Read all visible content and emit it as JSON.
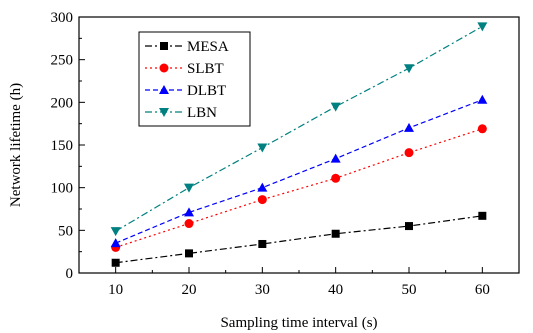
{
  "chart_data": {
    "type": "line",
    "title": "",
    "xlabel": "Sampling time interval (s)",
    "ylabel": "Network lifetime (h)",
    "x": [
      10,
      20,
      30,
      40,
      50,
      60
    ],
    "xlim": [
      5,
      65
    ],
    "ylim": [
      0,
      300
    ],
    "xticks": [
      "10",
      "20",
      "30",
      "40",
      "50",
      "60"
    ],
    "yticks": [
      "0",
      "50",
      "100",
      "150",
      "200",
      "250",
      "300"
    ],
    "grid": false,
    "legend_position": "top-left",
    "series": [
      {
        "name": "MESA",
        "values": [
          12,
          23,
          34,
          46,
          55,
          67
        ],
        "color": "#000000",
        "marker": "square",
        "dash": "dash-dot"
      },
      {
        "name": "SLBT",
        "values": [
          30,
          58,
          86,
          111,
          141,
          169
        ],
        "color": "#ff0000",
        "marker": "circle",
        "dash": "dot"
      },
      {
        "name": "DLBT",
        "values": [
          35,
          71,
          100,
          134,
          170,
          203
        ],
        "color": "#0000ff",
        "marker": "triangle-up",
        "dash": "dash"
      },
      {
        "name": "LBN",
        "values": [
          49,
          100,
          147,
          195,
          240,
          289
        ],
        "color": "#008080",
        "marker": "triangle-down",
        "dash": "dash-dot"
      }
    ]
  }
}
